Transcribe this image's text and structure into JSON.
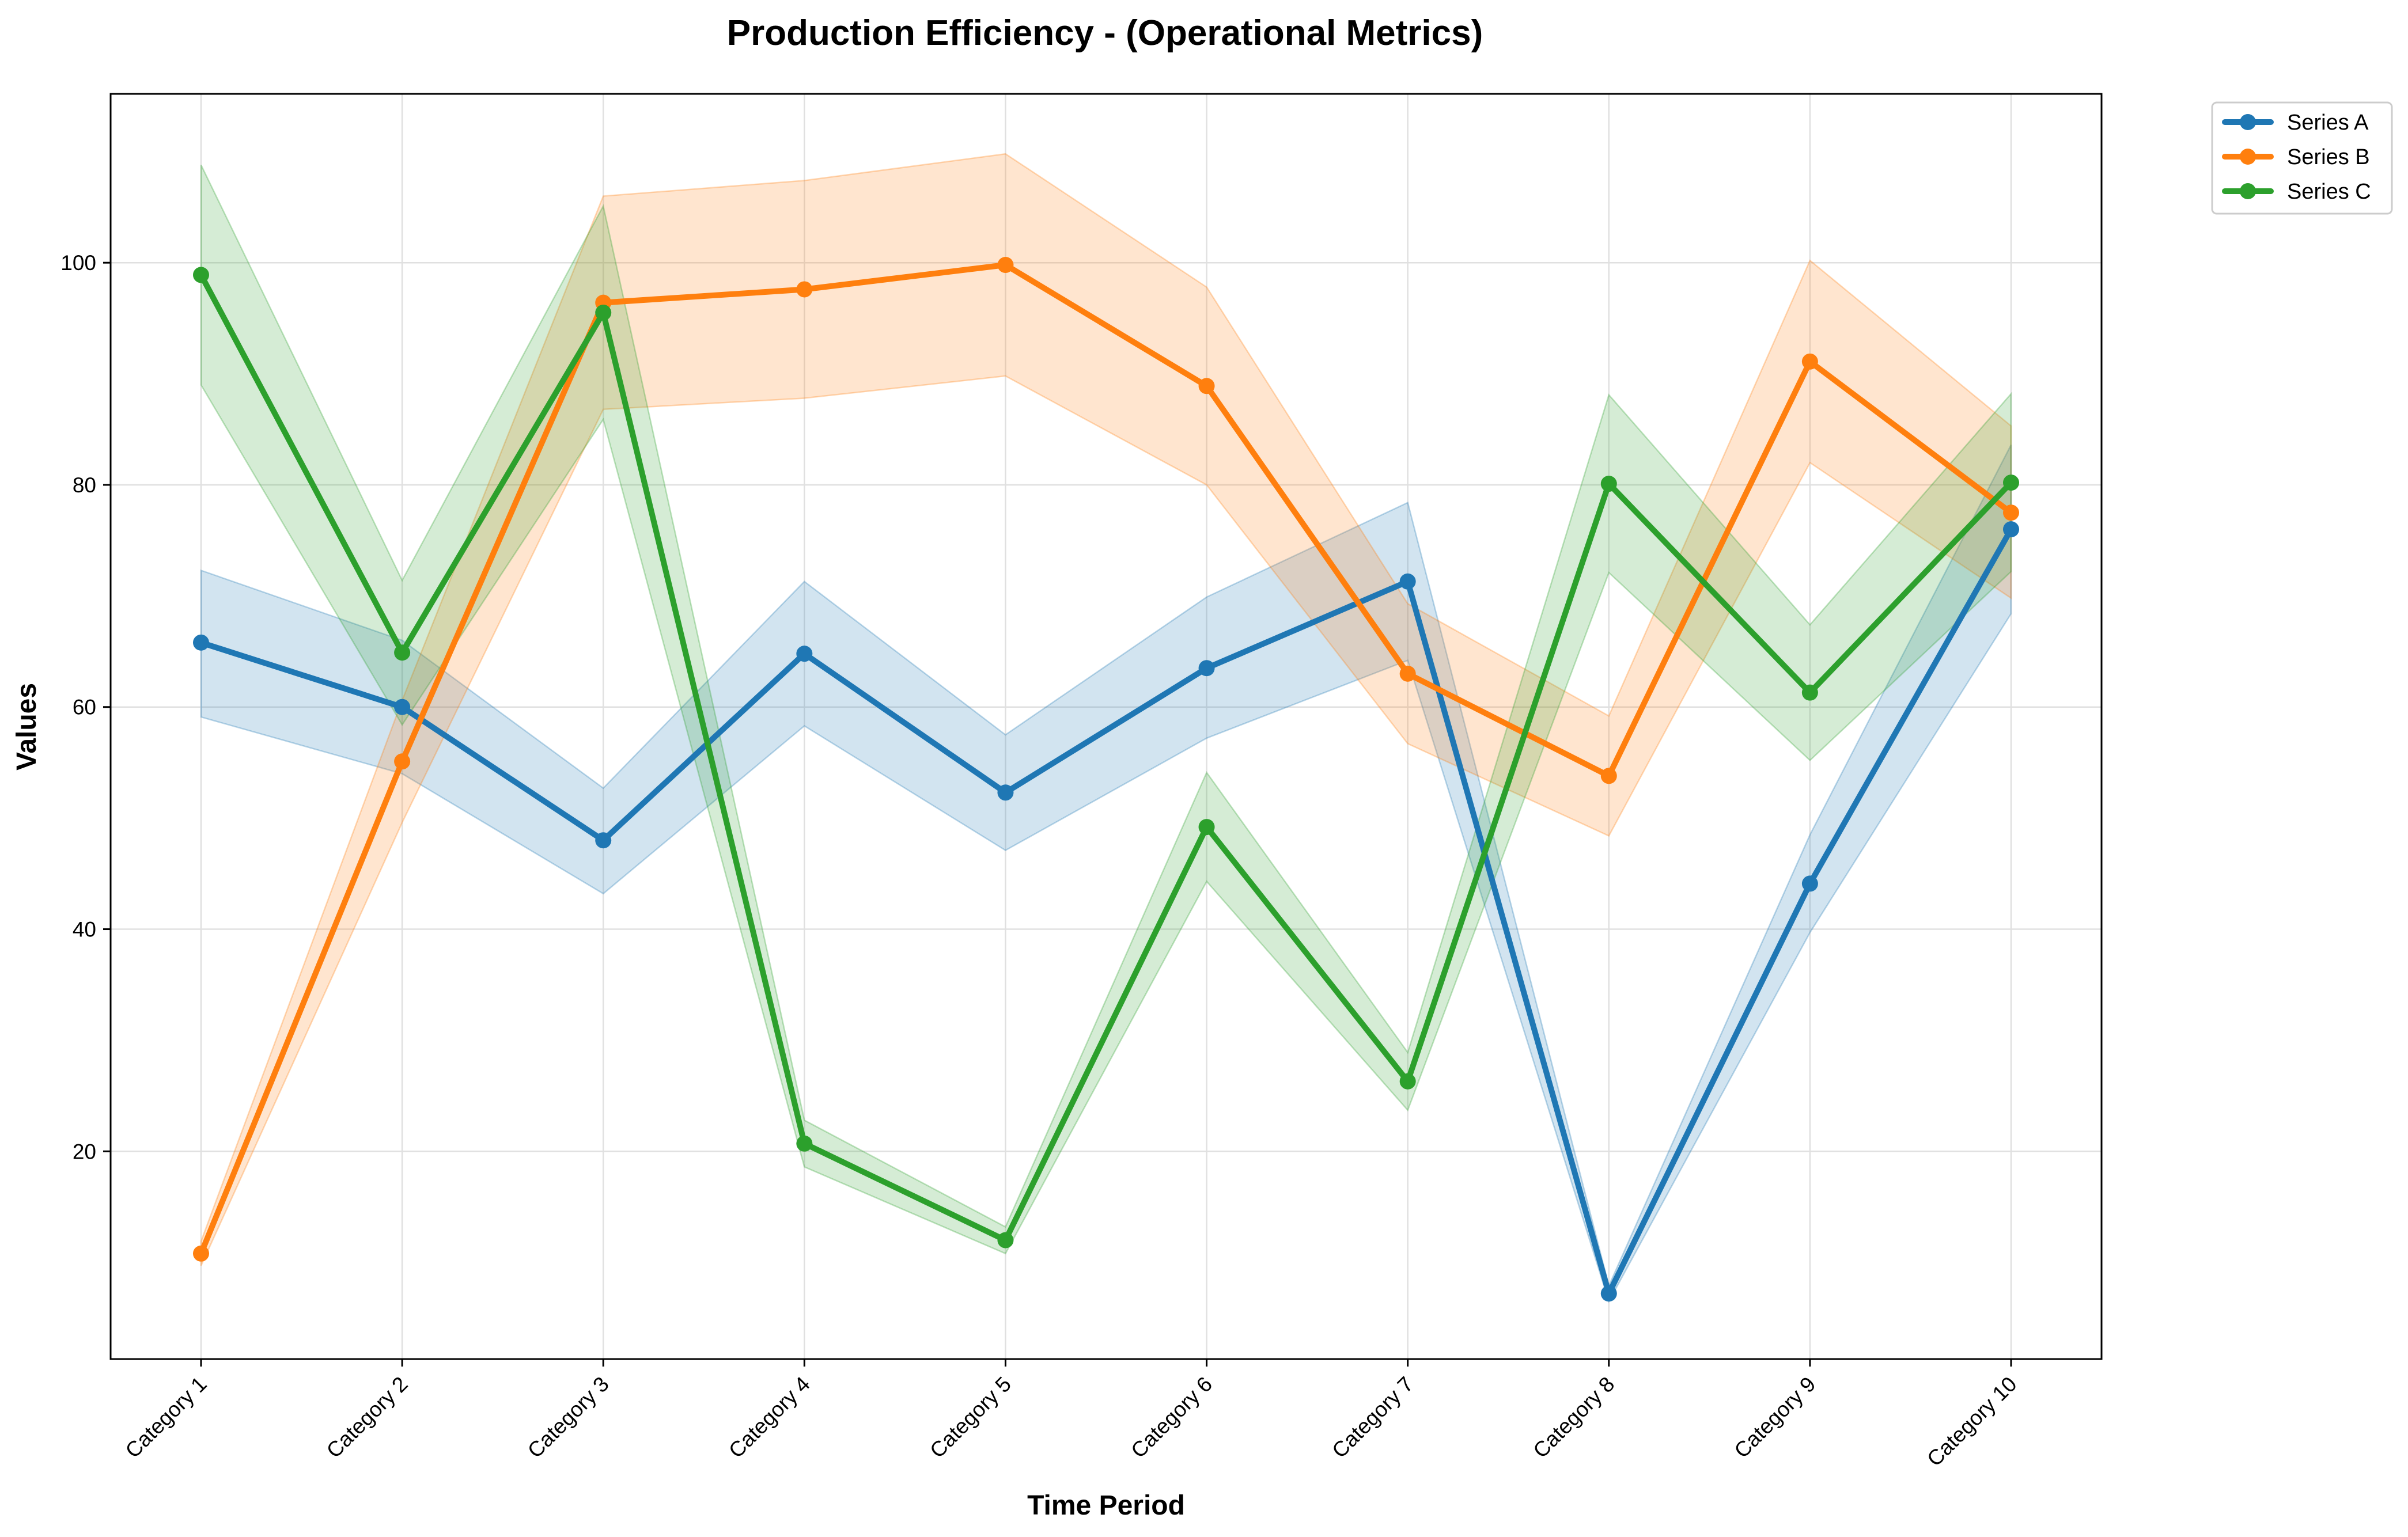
{
  "chart_data": {
    "type": "line",
    "title": "Production Efficiency - (Operational Metrics)",
    "xlabel": "Time Period",
    "ylabel": "Values",
    "categories": [
      "Category 1",
      "Category 2",
      "Category 3",
      "Category 4",
      "Category 5",
      "Category 6",
      "Category 7",
      "Category 8",
      "Category 9",
      "Category 10"
    ],
    "ylim": [
      1.3,
      115.2
    ],
    "yticks": [
      20,
      40,
      60,
      80,
      100
    ],
    "grid": true,
    "legend_position": "outside top-right",
    "series": [
      {
        "name": "Series A",
        "color": "#1f77b4",
        "values": [
          65.8,
          60.0,
          48.0,
          64.8,
          52.3,
          63.5,
          71.3,
          7.2,
          44.1,
          76.0
        ],
        "lower": [
          59.1,
          54.0,
          43.2,
          58.3,
          47.1,
          57.2,
          64.2,
          6.5,
          39.7,
          68.4
        ],
        "upper": [
          72.3,
          66.0,
          52.7,
          71.3,
          57.5,
          69.9,
          78.4,
          7.9,
          48.5,
          83.6
        ]
      },
      {
        "name": "Series B",
        "color": "#ff7f0e",
        "values": [
          10.8,
          55.1,
          96.4,
          97.6,
          99.8,
          88.9,
          63.0,
          53.8,
          91.1,
          77.5
        ],
        "lower": [
          9.7,
          49.6,
          86.8,
          87.8,
          89.8,
          80.0,
          56.7,
          48.4,
          82.0,
          69.8
        ],
        "upper": [
          11.9,
          60.6,
          106.0,
          107.4,
          109.8,
          97.8,
          69.3,
          59.2,
          100.2,
          85.3
        ]
      },
      {
        "name": "Series C",
        "color": "#2ca02c",
        "values": [
          98.9,
          64.9,
          95.5,
          20.7,
          12.0,
          49.2,
          26.3,
          80.1,
          61.3,
          80.2
        ],
        "lower": [
          89.0,
          58.4,
          85.9,
          18.6,
          10.8,
          44.3,
          23.7,
          72.1,
          55.2,
          72.2
        ],
        "upper": [
          108.8,
          71.4,
          105.1,
          22.8,
          13.2,
          54.1,
          28.9,
          88.1,
          67.4,
          88.2
        ]
      }
    ]
  }
}
